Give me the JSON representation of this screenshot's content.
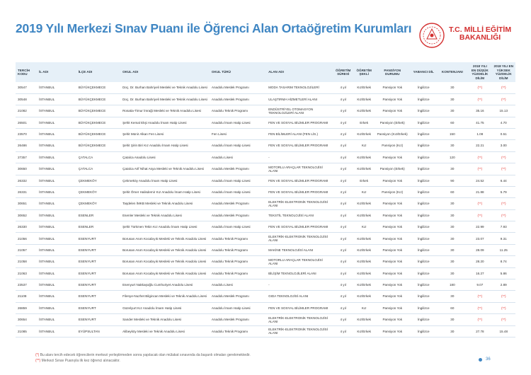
{
  "title": "2019 Yılı Merkezi Sınav Puanı ile Öğrenci Alan Ortaöğretim Kurumları",
  "logo": {
    "line1": "T.C. MİLLİ EĞİTİM",
    "line2": "BAKANLIĞI",
    "color": "#d32f2f"
  },
  "headers": [
    "TERCİH KODU",
    "İL ADI",
    "İLÇE ADI",
    "OKUL ADI",
    "OKUL TÜRÜ",
    "ALAN ADI",
    "ÖĞRETİM SÜRESİ",
    "ÖĞRETİM ŞEKLİ",
    "PANSİYON DURUMU",
    "YABANCI DİL",
    "KONTENJANI",
    "2018 YILI EN DÜŞÜK YÜZDELİK DİLİM",
    "2018 YILI EN YÜKSEK YÜZDELİK DİLİM"
  ],
  "rows": [
    [
      "30547",
      "İSTANBUL",
      "BÜYÜKÇEKMECE",
      "Doç. Dr. Burhan Bahriyeli Mesleki ve Teknik Anadolu Lisesi",
      "Anadolu Meslek Programı",
      "MODA TASARIM TEKNOLOJİLERİ",
      "4 yıl",
      "Kız/Erkek",
      "Pansiyon Yok",
      "İngilizce",
      "30",
      "(**)",
      "(**)"
    ],
    [
      "30548",
      "İSTANBUL",
      "BÜYÜKÇEKMECE",
      "Doç. Dr. Burhan Bahriyeli Mesleki ve Teknik Anadolu Lisesi",
      "Anadolu Meslek Programı",
      "ULAŞTIRMA HİZMETLERİ ALANI",
      "4 yıl",
      "Kız/Erkek",
      "Pansiyon Yok",
      "İngilizce",
      "30",
      "(**)",
      "(**)"
    ],
    [
      "21082",
      "İSTANBUL",
      "BÜYÜKÇEKMECE",
      "Rosatia-Timur İmraği Mesleki ve Teknik Anadolu Lisesi",
      "Anadolu Teknik Programı",
      "ENDÜSTRİYEL OTOMASYON TEKNOLOJİLERİ ALANI",
      "4 yıl",
      "Kız/Erkek",
      "Pansiyon Yok",
      "İngilizce",
      "30",
      "35.16",
      "15.13"
    ],
    [
      "26501",
      "İSTANBUL",
      "BÜYÜKÇEKMECE",
      "Şehit Kemal Ekşi Anadolu İmam Hatip Lisesi",
      "Anadolu İmam Hatip Lisesi",
      "FEN VE SOSYAL BİLİMLER PROGRAMI",
      "4 yıl",
      "Erkek",
      "Pansiyon (Erkek)",
      "İngilizce",
      "60",
      "41.75",
      "4.70"
    ],
    [
      "23570",
      "İSTANBUL",
      "BÜYÜKÇEKMECE",
      "Şehit Münir Alkan Fen Lisesi",
      "Fen Lisesi",
      "FEN BİLİMLERİ ALANI (FEN LİS.)",
      "4 yıl",
      "Kız/Erkek",
      "Pansiyon (Kız/Erkek)",
      "İngilizce",
      "150",
      "1.08",
      "0.51"
    ],
    [
      "26486",
      "İSTANBUL",
      "BÜYÜKÇEKMECE",
      "Şehit Şirin Biri Kız Anadolu İmam Hatip Lisesi",
      "Anadolu İmam Hatip Lisesi",
      "FEN VE SOSYAL BİLİMLER PROGRAMI",
      "4 yıl",
      "Kız",
      "Pansiyon (Kız)",
      "İngilizce",
      "30",
      "22.21",
      "3.00"
    ],
    [
      "27357",
      "İSTANBUL",
      "ÇATALCA",
      "Çatalca Anadolu Lisesi",
      "Anadolu Lisesi",
      "-",
      "4 yıl",
      "Kız/Erkek",
      "Pansiyon Yok",
      "İngilizce",
      "120",
      "(**)",
      "(**)"
    ],
    [
      "30650",
      "İSTANBUL",
      "ÇATALCA",
      "Çatalca Arif Nihat Asya Mesleki ve Teknik Anadolu Lisesi",
      "Anadolu Meslek Programı",
      "MOTORLU ARAÇLAR TEKNOLOJİSİ ALANI",
      "4 yıl",
      "Kız/Erkek",
      "Pansiyon (Erkek)",
      "İngilizce",
      "30",
      "(**)",
      "(**)"
    ],
    [
      "26332",
      "İSTANBUL",
      "ÇEKMEKÖY",
      "Çekmeköy Anadolu İmam Hatip Lisesi",
      "Anadolu İmam Hatip Lisesi",
      "FEN VE SOSYAL BİLİMLER PROGRAMI",
      "4 yıl",
      "Erkek",
      "Pansiyon Yok",
      "İngilizce",
      "90",
      "24.52",
      "6.44"
    ],
    [
      "26331",
      "İSTANBUL",
      "ÇEKMEKÖY",
      "Şehit Ömer Halisdemir Kız Anadolu İmam Hatip Lisesi",
      "Anadolu İmam Hatip Lisesi",
      "FEN VE SOSYAL BİLİMLER PROGRAMI",
      "4 yıl",
      "Kız",
      "Pansiyon (Kız)",
      "İngilizce",
      "60",
      "21.88",
      "5.79"
    ],
    [
      "30651",
      "İSTANBUL",
      "ÇEKMEKÖY",
      "Taşdelen İMKB Mesleki ve Teknik Anadolu Lisesi",
      "Anadolu Meslek Programı",
      "ELEKTRİK-ELEKTRONİK TEKNOLOJİSİ ALANI",
      "4 yıl",
      "Kız/Erkek",
      "Pansiyon Yok",
      "İngilizce",
      "30",
      "(**)",
      "(**)"
    ],
    [
      "30652",
      "İSTANBUL",
      "ESENLER",
      "Esenler Mesleki ve Teknik Anadolu Lisesi",
      "Anadolu Meslek Programı",
      "TEKSTİL TEKNOLOJİSİ ALANI",
      "4 yıl",
      "Kız/Erkek",
      "Pansiyon Yok",
      "İngilizce",
      "30",
      "(**)",
      "(**)"
    ],
    [
      "26330",
      "İSTANBUL",
      "ESENLER",
      "Şehit Türkmen Tekin Kız Anadolu İmam Hatip Lisesi",
      "Anadolu İmam Hatip Lisesi",
      "FEN VE SOSYAL BİLİMLER PROGRAMI",
      "4 yıl",
      "Kız",
      "Pansiyon Yok",
      "İngilizce",
      "30",
      "22.99",
      "7.93"
    ],
    [
      "21056",
      "İSTANBUL",
      "ESENYURT",
      "Borusan Asım Kocabıyık Mesleki ve Teknik Anadolu Lisesi",
      "Anadolu Teknik Programı",
      "ELEKTRİK-ELEKTRONİK TEKNOLOJİSİ ALANI",
      "4 yıl",
      "Kız/Erkek",
      "Pansiyon Yok",
      "İngilizce",
      "30",
      "23.07",
      "9.31"
    ],
    [
      "21057",
      "İSTANBUL",
      "ESENYURT",
      "Borusan Asım Kocabıyık Mesleki ve Teknik Anadolu Lisesi",
      "Anadolu Teknik Programı",
      "MAKİNE TEKNOLOJİSİ ALANI",
      "4 yıl",
      "Kız/Erkek",
      "Pansiyon Yok",
      "İngilizce",
      "30",
      "28.09",
      "11.25"
    ],
    [
      "21058",
      "İSTANBUL",
      "ESENYURT",
      "Borusan Asım Kocabıyık Mesleki ve Teknik Anadolu Lisesi",
      "Anadolu Teknik Programı",
      "MOTORLU ARAÇLAR TEKNOLOJİSİ ALANI",
      "4 yıl",
      "Kız/Erkek",
      "Pansiyon Yok",
      "İngilizce",
      "30",
      "28.20",
      "8.74"
    ],
    [
      "21063",
      "İSTANBUL",
      "ESENYURT",
      "Borusan Asım Kocabıyık Mesleki ve Teknik Anadolu Lisesi",
      "Anadolu Teknik Programı",
      "BİLİŞİM TEKNOLOJİLERİ ALANI",
      "4 yıl",
      "Kız/Erkek",
      "Pansiyon Yok",
      "İngilizce",
      "30",
      "16.27",
      "5.86"
    ],
    [
      "23537",
      "İSTANBUL",
      "ESENYURT",
      "Esenyurt Nakkaşoğlu Cumhuriyet Anadolu Lisesi",
      "Anadolu Lisesi",
      "-",
      "4 yıl",
      "Kız/Erkek",
      "Pansiyon Yok",
      "İngilizce",
      "180",
      "9.07",
      "2.89"
    ],
    [
      "21108",
      "İSTANBUL",
      "ESENYURT",
      "Filenye-Nuzhet Bilgincan Mesleki ve Teknik Anadolu Lisesi",
      "Anadolu Meslek Programı",
      "GIDA TEKNOLOJİSİ ALANI",
      "4 yıl",
      "Kız/Erkek",
      "Pansiyon Yok",
      "İngilizce",
      "30",
      "(**)",
      "(**)"
    ],
    [
      "26859",
      "İSTANBUL",
      "ESENYURT",
      "Güzelyurt Kız Anadolu İmam Hatip Lisesi",
      "Anadolu İmam Hatip Lisesi",
      "FEN VE SOSYAL BİLİMLER PROGRAMI",
      "4 yıl",
      "Kız",
      "Pansiyon Yok",
      "İngilizce",
      "60",
      "(**)",
      "(**)"
    ],
    [
      "30654",
      "İSTANBUL",
      "ESENYURT",
      "Sander Mesleki ve Teknik Anadolu Lisesi",
      "Anadolu Meslek Programı",
      "ELEKTRİK-ELEKTRONİK TEKNOLOJİSİ ALANI",
      "4 yıl",
      "Kız/Erkek",
      "Pansiyon Yok",
      "İngilizce",
      "30",
      "(**)",
      "(**)"
    ],
    [
      "21085",
      "İSTANBUL",
      "EYÜPSULTAN",
      "Alibeyköy Mesleki ve Teknik Anadolu Lisesi",
      "Anadolu Teknik Programı",
      "ELEKTRİK-ELEKTRONİK TEKNOLOJİSİ ALANI",
      "4 yıl",
      "Kız/Erkek",
      "Pansiyon Yok",
      "İngilizce",
      "30",
      "27.78",
      "15.48"
    ]
  ],
  "notes": {
    "n1_mark": "(*)",
    "n1_text": "Bu alanı tercih edecek öğrencilerin merkezi yerleştirmeden sonra yapılacak olan mülakat sınavında da başarılı olmaları gerekmektedir.",
    "n2_mark": "(**)",
    "n2_text": "Merkezi Sınav Puanıyla ilk kez öğrenci alınacaktır."
  },
  "page_number": "36",
  "colors": {
    "title": "#3f86c3",
    "header_bg": "#e6f0f8",
    "marker": "#e53935"
  }
}
